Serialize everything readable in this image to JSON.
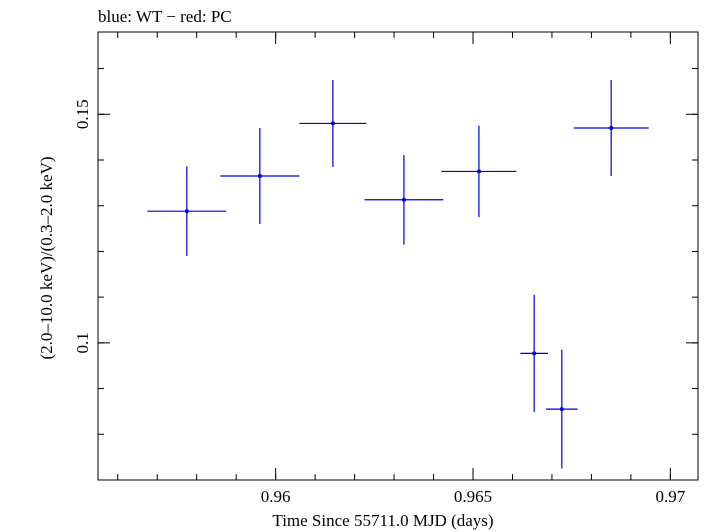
{
  "chart_data": {
    "type": "scatter",
    "title": "blue: WT − red: PC",
    "xlabel": "Time Since 55711.0 MJD (days)",
    "ylabel": "(2.0–10.0 keV)/(0.3–2.0 keV)",
    "xlim": [
      0.9555,
      0.9707
    ],
    "ylim": [
      0.07,
      0.168
    ],
    "x_ticks": [
      {
        "value": 0.96,
        "label": "0.96"
      },
      {
        "value": 0.965,
        "label": "0.965"
      },
      {
        "value": 0.97,
        "label": "0.97"
      }
    ],
    "y_ticks": [
      {
        "value": 0.1,
        "label": "0.1"
      },
      {
        "value": 0.15,
        "label": "0.15"
      }
    ],
    "grid": false,
    "series": [
      {
        "color": "#0000dd",
        "points": [
          {
            "x": 0.95775,
            "xerr": 0.001,
            "y": 0.1288,
            "yerr": 0.0098
          },
          {
            "x": 0.9596,
            "xerr": 0.001,
            "y": 0.1365,
            "yerr": 0.0105
          },
          {
            "x": 0.96145,
            "xerr": 0.00085,
            "y": 0.148,
            "yerr": 0.0095
          },
          {
            "x": 0.96325,
            "xerr": 0.001,
            "y": 0.1313,
            "yerr": 0.0098
          },
          {
            "x": 0.96515,
            "xerr": 0.00095,
            "y": 0.1375,
            "yerr": 0.01
          },
          {
            "x": 0.96655,
            "xerr": 0.00035,
            "y": 0.0977,
            "yerr": 0.0128
          },
          {
            "x": 0.96725,
            "xerr": 0.0004,
            "y": 0.0855,
            "yerr": 0.013
          },
          {
            "x": 0.9685,
            "xerr": 0.00095,
            "y": 0.147,
            "yerr": 0.0105
          }
        ]
      }
    ]
  }
}
